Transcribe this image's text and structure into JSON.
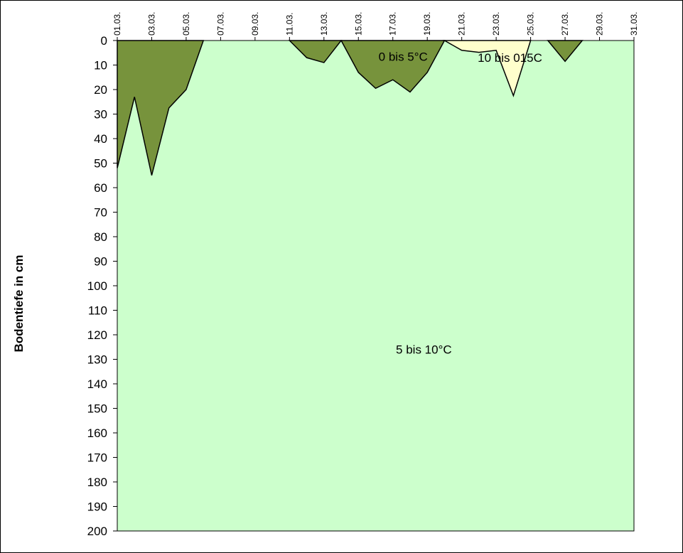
{
  "chart_data": {
    "type": "area",
    "title": "",
    "ylabel": "Bodentiefe in cm",
    "xlabel": "",
    "y_inverted": true,
    "ylim": [
      0,
      200
    ],
    "y_ticks": [
      0,
      10,
      20,
      30,
      40,
      50,
      60,
      70,
      80,
      90,
      100,
      110,
      120,
      130,
      140,
      150,
      160,
      170,
      180,
      190,
      200
    ],
    "y_tick_labels": [
      "0",
      "10",
      "20",
      "30",
      "40",
      "50",
      "60",
      "70",
      "80",
      "90",
      "100",
      "110",
      "120",
      "130",
      "140",
      "150",
      "160",
      "170",
      "180",
      "190",
      "200"
    ],
    "x_tick_labels": [
      "01.03.",
      "03.03.",
      "05.03.",
      "07.03.",
      "09.03.",
      "11.03.",
      "13.03.",
      "15.03.",
      "17.03.",
      "19.03.",
      "21.03.",
      "23.03.",
      "25.03.",
      "27.03.",
      "29.03.",
      "31.03."
    ],
    "x_day_range": [
      1,
      31
    ],
    "grid": false,
    "legend": "none",
    "background_zone": {
      "label": "5 bis 10°C",
      "color": "#ccffcc"
    },
    "series": [
      {
        "name": "0 bis 5°C",
        "color": "#77933c",
        "points": [
          [
            1,
            52
          ],
          [
            2,
            23
          ],
          [
            3,
            55
          ],
          [
            4,
            27.5
          ],
          [
            5,
            20
          ],
          [
            6,
            0
          ],
          [
            11,
            0
          ],
          [
            12,
            7
          ],
          [
            13,
            9
          ],
          [
            14,
            0
          ],
          [
            14,
            0
          ],
          [
            15,
            13
          ],
          [
            16,
            19.5
          ],
          [
            17,
            16
          ],
          [
            18,
            21
          ],
          [
            19,
            13
          ],
          [
            20,
            0
          ],
          [
            26,
            0
          ],
          [
            27,
            8.5
          ],
          [
            28,
            0
          ]
        ]
      },
      {
        "name": "10 bis 015C",
        "color": "#ffffcc",
        "points": [
          [
            20,
            0
          ],
          [
            21,
            4
          ],
          [
            22,
            4.8
          ],
          [
            23,
            4
          ],
          [
            24,
            22.5
          ],
          [
            25,
            0
          ]
        ]
      }
    ],
    "zone_labels": [
      {
        "text": "0 bis 5°C",
        "day": 17.6,
        "depth": 6.5
      },
      {
        "text": "10 bis 015C",
        "day": 23.8,
        "depth": 7
      },
      {
        "text": "5 bis 10°C",
        "day": 18.8,
        "depth": 126
      }
    ]
  }
}
